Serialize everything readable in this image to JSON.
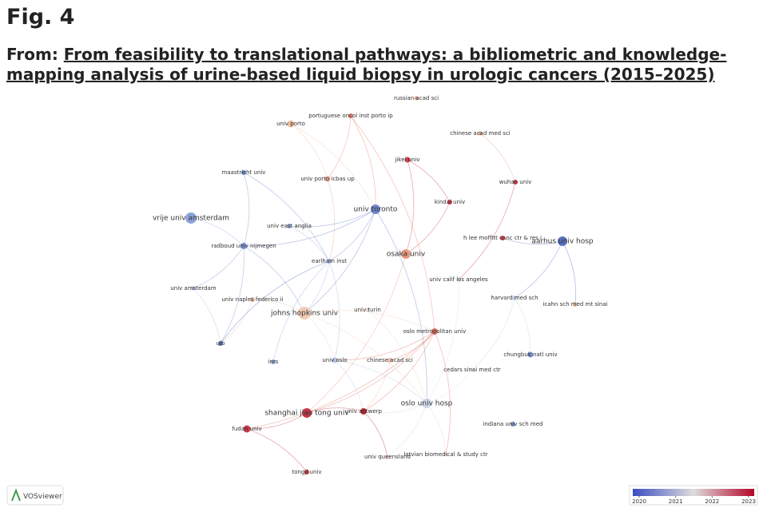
{
  "header": {
    "fig": "Fig. 4",
    "from": "From:",
    "title": "From feasibility to translational pathways: a bibliometric and knowledge-mapping analysis of urine-based liquid biopsy in urologic cancers (2015–2025)"
  },
  "nodes": [
    {
      "label": "russian acad sci",
      "color": "#e8a090"
    },
    {
      "label": "portuguese oncol inst porto ip",
      "color": "#e88070"
    },
    {
      "label": "univ porto",
      "color": "#f0c0a0"
    },
    {
      "label": "chinese acad med sci",
      "color": "#e8a888"
    },
    {
      "label": "jikei univ",
      "color": "#d04050"
    },
    {
      "label": "maastricht univ",
      "color": "#7090d0"
    },
    {
      "label": "univ porto icbas up",
      "color": "#e8a890"
    },
    {
      "label": "wuhan univ",
      "color": "#d04050"
    },
    {
      "label": "kindai univ",
      "color": "#d04050"
    },
    {
      "label": "univ toronto",
      "color": "#6f86cc"
    },
    {
      "label": "vrije univ amsterdam",
      "color": "#8da4dc"
    },
    {
      "label": "univ east anglia",
      "color": "#9bb0e0"
    },
    {
      "label": "aarhus univ hosp",
      "color": "#5b72c2"
    },
    {
      "label": "h lee moffitt canc ctr & res i",
      "color": "#d04050"
    },
    {
      "label": "radboud univ nijmegen",
      "color": "#7f96d4"
    },
    {
      "label": "osaka univ",
      "color": "#e89a84"
    },
    {
      "label": "earlham inst",
      "color": "#a0b4e0"
    },
    {
      "label": "univ calif los angeles",
      "color": "#d6dcec"
    },
    {
      "label": "univ amsterdam",
      "color": "#b0c0e4"
    },
    {
      "label": "univ naples federico ii",
      "color": "#e8c0a8"
    },
    {
      "label": "harvard med sch",
      "color": "#c8d0e8"
    },
    {
      "label": "icahn sch med mt sinai",
      "color": "#f0c0a0"
    },
    {
      "label": "univ turin",
      "color": "#e8d0c8"
    },
    {
      "label": "johns hopkins univ",
      "color": "#f2cbb4"
    },
    {
      "label": "oslo metropolitan univ",
      "color": "#e07060"
    },
    {
      "label": "ulb",
      "color": "#5b72c2"
    },
    {
      "label": "chungbuk natl univ",
      "color": "#7890d0"
    },
    {
      "label": "inrs",
      "color": "#90a8dc"
    },
    {
      "label": "univ oslo",
      "color": "#b8c4e4"
    },
    {
      "label": "chinese acad sci",
      "color": "#f0c0a8"
    },
    {
      "label": "cedars sinai med ctr",
      "color": "#e0e4f0"
    },
    {
      "label": "oslo univ hosp",
      "color": "#d0d8ec"
    },
    {
      "label": "shanghai jiao tong univ",
      "color": "#c83848"
    },
    {
      "label": "univ antwerp",
      "color": "#b82838"
    },
    {
      "label": "indiana univ sch med",
      "color": "#7a92d2"
    },
    {
      "label": "fudan univ",
      "color": "#c83848"
    },
    {
      "label": "univ queensland",
      "color": "#f0d8d0"
    },
    {
      "label": "latvian biomedical & study ctr",
      "color": "#f0d8d0"
    },
    {
      "label": "tongji univ",
      "color": "#c83848"
    }
  ],
  "legend": {
    "ticks": [
      2020,
      2021,
      2022,
      2023
    ],
    "colors": [
      "#3b4cc0",
      "#dddddd",
      "#b40426"
    ]
  },
  "logo": "VOSviewer"
}
